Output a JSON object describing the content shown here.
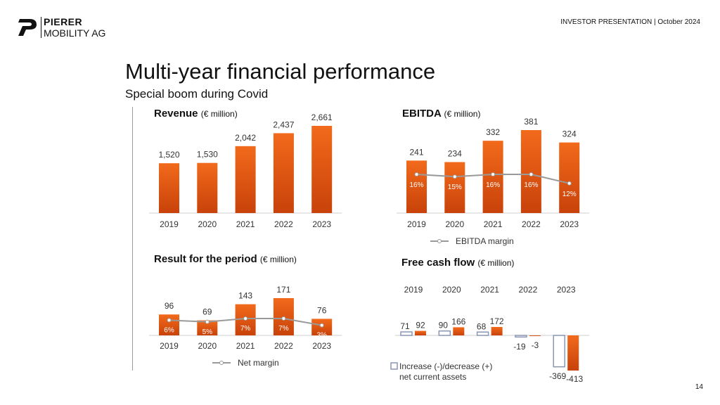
{
  "company": {
    "name_line1": "PIERER",
    "name_line2": "MOBILITY AG"
  },
  "header": {
    "presentation": "INVESTOR PRESENTATION | October 2024"
  },
  "page": {
    "title": "Multi-year financial performance",
    "subtitle": "Special boom during Covid",
    "number": "14"
  },
  "colors": {
    "bar_top": "#f26a1b",
    "bar_bottom": "#c8420a",
    "line": "#9a9a9a",
    "outline_bar": "#8a96b4"
  },
  "chart_data": [
    {
      "id": "revenue",
      "type": "bar",
      "title": "Revenue",
      "unit": "(€ million)",
      "categories": [
        "2019",
        "2020",
        "2021",
        "2022",
        "2023"
      ],
      "values": [
        1520,
        1530,
        2042,
        2437,
        2661
      ],
      "value_labels": [
        "1,520",
        "1,530",
        "2,042",
        "2,437",
        "2,661"
      ],
      "ylim": [
        0,
        2661
      ]
    },
    {
      "id": "ebitda",
      "type": "bar",
      "title": "EBITDA",
      "unit": "(€ million)",
      "categories": [
        "2019",
        "2020",
        "2021",
        "2022",
        "2023"
      ],
      "values": [
        241,
        234,
        332,
        381,
        324
      ],
      "value_labels": [
        "241",
        "234",
        "332",
        "381",
        "324"
      ],
      "line_series": {
        "name": "EBITDA margin",
        "values": [
          16,
          15,
          16,
          16,
          12
        ],
        "labels": [
          "16%",
          "15%",
          "16%",
          "16%",
          "12%"
        ]
      },
      "ylim": [
        0,
        381
      ]
    },
    {
      "id": "result",
      "type": "bar",
      "title": "Result for the period",
      "unit": "(€ million)",
      "categories": [
        "2019",
        "2020",
        "2021",
        "2022",
        "2023"
      ],
      "values": [
        96,
        69,
        143,
        171,
        76
      ],
      "value_labels": [
        "96",
        "69",
        "143",
        "171",
        "76"
      ],
      "line_series": {
        "name": "Net margin",
        "values": [
          6,
          5,
          7,
          7,
          3
        ],
        "labels": [
          "6%",
          "5%",
          "7%",
          "7%",
          "3%"
        ]
      },
      "ylim": [
        0,
        171
      ]
    },
    {
      "id": "fcf",
      "type": "bar",
      "title": "Free cash flow",
      "unit": "(€ million)",
      "categories": [
        "2019",
        "2020",
        "2021",
        "2022",
        "2023"
      ],
      "series": [
        {
          "name": "Increase (-)/decrease (+) net current assets",
          "values": [
            71,
            90,
            68,
            -19,
            -369
          ],
          "labels": [
            "71",
            "90",
            "68",
            "-19",
            "-369"
          ]
        },
        {
          "name": "Free cash flow",
          "values": [
            92,
            166,
            172,
            -3,
            -413
          ],
          "labels": [
            "92",
            "166",
            "172",
            "-3",
            "-413"
          ]
        }
      ],
      "legend_line1": "Increase (-)/decrease (+)",
      "legend_line2": "net current assets"
    }
  ]
}
